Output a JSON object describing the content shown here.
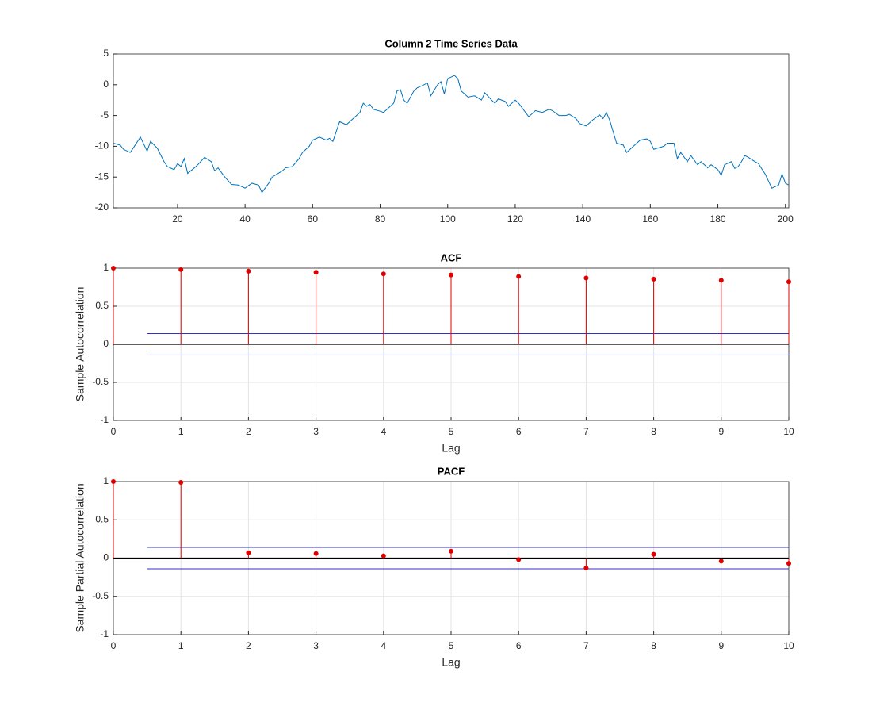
{
  "chart_data": [
    {
      "type": "line",
      "title": "Column 2 Time Series Data",
      "x": [
        1,
        3,
        4,
        6,
        7,
        9,
        11,
        12,
        14,
        16,
        17,
        19,
        20,
        21,
        22,
        23,
        25,
        26,
        28,
        30,
        31,
        32,
        34,
        36,
        38,
        40,
        42,
        44,
        45,
        47,
        48,
        51,
        52,
        54,
        56,
        57,
        59,
        60,
        62,
        64,
        65,
        66,
        68,
        70,
        71,
        73,
        74,
        75,
        76,
        77,
        78,
        80,
        81,
        83,
        84,
        85,
        86,
        87,
        88,
        90,
        91,
        93,
        94,
        95,
        97,
        98,
        99,
        100,
        102,
        103,
        104,
        106,
        108,
        110,
        111,
        113,
        114,
        115,
        117,
        118,
        120,
        121,
        124,
        126,
        128,
        130,
        131,
        133,
        135,
        136,
        138,
        139,
        141,
        143,
        145,
        146,
        147,
        148,
        150,
        152,
        153,
        155,
        157,
        159,
        160,
        161,
        164,
        165,
        167,
        168,
        169,
        171,
        172,
        174,
        175,
        177,
        178,
        180,
        181,
        182,
        184,
        185,
        186,
        187,
        188,
        189,
        191,
        192,
        194,
        196,
        198,
        199,
        200,
        201
      ],
      "series": [
        {
          "name": "Column 2",
          "color": "#0072bd",
          "values": [
            -9.5,
            -9.8,
            -10.5,
            -11,
            -10.2,
            -8.5,
            -10.8,
            -9.2,
            -10.3,
            -12.5,
            -13.3,
            -13.8,
            -12.8,
            -13.3,
            -12,
            -14.4,
            -13.5,
            -13,
            -11.8,
            -12.5,
            -14,
            -13.5,
            -15,
            -16.2,
            -16.3,
            -16.8,
            -16,
            -16.3,
            -17.5,
            -16,
            -15,
            -14,
            -13.5,
            -13.3,
            -12,
            -11,
            -10,
            -9,
            -8.5,
            -9,
            -8.7,
            -9.2,
            -6,
            -6.5,
            -6,
            -5,
            -4.5,
            -3,
            -3.5,
            -3.2,
            -4,
            -4.3,
            -4.5,
            -3.5,
            -3,
            -1,
            -0.8,
            -2.5,
            -3,
            -1,
            -0.5,
            0,
            0.3,
            -1.8,
            0,
            0.5,
            -1.5,
            1,
            1.5,
            1,
            -1,
            -2,
            -1.8,
            -2.5,
            -1.3,
            -2.5,
            -3,
            -2.3,
            -2.7,
            -3.5,
            -2.5,
            -3,
            -5.2,
            -4.2,
            -4.5,
            -4,
            -4.2,
            -5,
            -5,
            -4.8,
            -5.5,
            -6.3,
            -6.7,
            -5.7,
            -4.9,
            -5.5,
            -4.5,
            -5.8,
            -9.5,
            -9.8,
            -11,
            -10,
            -9,
            -8.8,
            -9.2,
            -10.5,
            -10,
            -9.5,
            -9.5,
            -12,
            -11,
            -12.5,
            -11.5,
            -13,
            -12.5,
            -13.5,
            -13,
            -13.8,
            -14.7,
            -13,
            -12.5,
            -13.6,
            -13.3,
            -12.5,
            -11.5,
            -11.8,
            -12.5,
            -12.8,
            -14.5,
            -16.8,
            -16.3,
            -14.5,
            -16,
            -16.3
          ]
        }
      ],
      "xlim": [
        1,
        201
      ],
      "xticks": [
        20,
        40,
        60,
        80,
        100,
        120,
        140,
        160,
        180,
        200
      ],
      "ylim": [
        -20,
        5
      ],
      "yticks": [
        -20,
        -15,
        -10,
        -5,
        0,
        5
      ],
      "grid": false
    },
    {
      "type": "stem",
      "title": "ACF",
      "xlabel": "Lag",
      "ylabel": "Sample Autocorrelation",
      "x": [
        0,
        1,
        2,
        3,
        4,
        5,
        6,
        7,
        8,
        9,
        10
      ],
      "series": [
        {
          "name": "ACF",
          "color": "#e00000",
          "values": [
            1,
            0.98,
            0.96,
            0.945,
            0.925,
            0.91,
            0.89,
            0.87,
            0.855,
            0.84,
            0.82
          ]
        }
      ],
      "bounds": {
        "color": "#3030c8",
        "values": [
          -0.14,
          0.14
        ],
        "x": [
          0.5,
          10
        ]
      },
      "xlim": [
        0,
        10
      ],
      "xticks": [
        0,
        1,
        2,
        3,
        4,
        5,
        6,
        7,
        8,
        9,
        10
      ],
      "ylim": [
        -1,
        1
      ],
      "yticks": [
        -1,
        -0.5,
        0,
        0.5,
        1
      ],
      "grid": true
    },
    {
      "type": "stem",
      "title": "PACF",
      "xlabel": "Lag",
      "ylabel": "Sample Partial Autocorrelation",
      "x": [
        0,
        1,
        2,
        3,
        4,
        5,
        6,
        7,
        8,
        9,
        10
      ],
      "series": [
        {
          "name": "PACF",
          "color": "#e00000",
          "values": [
            1,
            0.99,
            0.07,
            0.06,
            0.03,
            0.09,
            -0.02,
            -0.13,
            0.05,
            -0.04,
            -0.07
          ]
        }
      ],
      "bounds": {
        "color": "#3030c8",
        "values": [
          -0.14,
          0.14
        ],
        "x": [
          0.5,
          10
        ]
      },
      "xlim": [
        0,
        10
      ],
      "xticks": [
        0,
        1,
        2,
        3,
        4,
        5,
        6,
        7,
        8,
        9,
        10
      ],
      "ylim": [
        -1,
        1
      ],
      "yticks": [
        -1,
        -0.5,
        0,
        0.5,
        1
      ],
      "grid": true
    }
  ]
}
